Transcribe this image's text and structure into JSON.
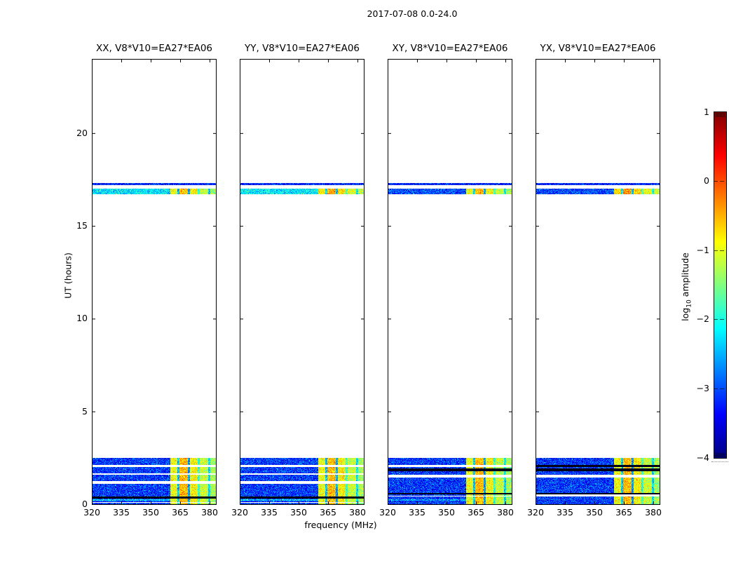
{
  "figure": {
    "title": "2017-07-08 0.0-24.0"
  },
  "chart_data": {
    "type": "heatmap",
    "title": "2017-07-08 0.0-24.0",
    "xlabel": "frequency (MHz)",
    "ylabel": "UT (hours)",
    "x_range_mhz": [
      320,
      383.2
    ],
    "y_range_hours": [
      0,
      24
    ],
    "x_tick_labels": [
      "320",
      "335",
      "350",
      "365",
      "380"
    ],
    "x_tick_values": [
      320,
      335,
      350,
      365,
      380
    ],
    "y_tick_labels": [
      "0",
      "5",
      "10",
      "15",
      "20"
    ],
    "y_tick_values": [
      0,
      5,
      10,
      15,
      20
    ],
    "colormap": "jet",
    "colorbar": {
      "label_prefix": "log",
      "label_sub": "10",
      "label_rest": " amplitude",
      "tick_labels": [
        "1",
        "0",
        "−1",
        "−2",
        "−3",
        "−4"
      ],
      "tick_values": [
        1,
        0,
        -1,
        -2,
        -3,
        -4
      ],
      "vmin": -4,
      "vmax": 1
    },
    "panels": [
      {
        "title": "XX, V8*V10=EA27*EA06",
        "pol": "XX",
        "seed": 11,
        "event_base": -2.25,
        "stripe_boost": 0,
        "gap_rows": [
          {
            "t": [
              2.04,
              2.15
            ],
            "color": "white"
          },
          {
            "t": [
              1.59,
              1.7
            ],
            "color": "white"
          },
          {
            "t": [
              1.13,
              1.25
            ],
            "color": "white"
          },
          {
            "t": [
              0.34,
              0.45
            ],
            "color": "dark"
          },
          {
            "t": [
              0.11,
              0.15
            ],
            "color": "white"
          }
        ],
        "bright_row": {
          "t": [
            0.19,
            0.3
          ],
          "value": -2.3
        }
      },
      {
        "title": "YY, V8*V10=EA27*EA06",
        "pol": "YY",
        "seed": 23,
        "event_base": -2.2,
        "stripe_boost": 0.1,
        "gap_rows": [
          {
            "t": [
              2.04,
              2.15
            ],
            "color": "white"
          },
          {
            "t": [
              1.59,
              1.7
            ],
            "color": "white"
          },
          {
            "t": [
              1.13,
              1.25
            ],
            "color": "white"
          },
          {
            "t": [
              0.34,
              0.45
            ],
            "color": "dark"
          },
          {
            "t": [
              0.11,
              0.15
            ],
            "color": "white"
          }
        ],
        "bright_row": {
          "t": [
            0.19,
            0.3
          ],
          "value": -2.3
        }
      },
      {
        "title": "XY, V8*V10=EA27*EA06",
        "pol": "XY",
        "seed": 37,
        "event_base": -3.0,
        "stripe_boost": 0,
        "gap_rows": [
          {
            "t": [
              2.04,
              2.15
            ],
            "color": "white"
          },
          {
            "t": [
              1.81,
              1.93
            ],
            "color": "dark"
          },
          {
            "t": [
              1.47,
              1.59
            ],
            "color": "white"
          },
          {
            "t": [
              0.53,
              0.64
            ],
            "color": "dark"
          },
          {
            "t": [
              0.42,
              0.49
            ],
            "color": "white"
          }
        ],
        "bright_row": {
          "t": [
            0.19,
            0.3
          ],
          "value": -2.6
        }
      },
      {
        "title": "YX, V8*V10=EA27*EA06",
        "pol": "YX",
        "seed": 51,
        "event_base": -3.0,
        "stripe_boost": 0.2,
        "gap_rows": [
          {
            "t": [
              2.04,
              2.12
            ],
            "color": "dark"
          },
          {
            "t": [
              1.81,
              1.93
            ],
            "color": "dark"
          },
          {
            "t": [
              1.47,
              1.59
            ],
            "color": "white"
          },
          {
            "t": [
              0.53,
              0.64
            ],
            "color": "dark"
          },
          {
            "t": [
              0.42,
              0.53
            ],
            "color": "white"
          }
        ],
        "bright_row": null
      }
    ],
    "features": {
      "bottom_band": {
        "t_range": [
          0,
          2.53
        ],
        "base_value": -3.1,
        "noise_sd": 0.33
      },
      "event": {
        "band_t": [
          16.72,
          17.02
        ],
        "gap_t": [
          17.02,
          17.22
        ],
        "thin_t": [
          17.22,
          17.33
        ],
        "thin_value": -3.2
      },
      "rfi_stripes_mhz": [
        {
          "f": [
            360.0,
            363.5
          ],
          "v": -0.95
        },
        {
          "f": [
            363.5,
            364.5
          ],
          "v": -2.4
        },
        {
          "f": [
            364.5,
            368.8
          ],
          "v": -0.55
        },
        {
          "f": [
            368.8,
            370.0
          ],
          "v": -2.6
        },
        {
          "f": [
            370.0,
            373.6
          ],
          "v": -0.85
        },
        {
          "f": [
            373.6,
            375.0
          ],
          "v": -1.9
        },
        {
          "f": [
            375.0,
            379.0
          ],
          "v": -1.15
        },
        {
          "f": [
            379.0,
            380.1
          ],
          "v": -2.3
        },
        {
          "f": [
            380.1,
            383.2
          ],
          "v": -1.35
        }
      ]
    }
  }
}
